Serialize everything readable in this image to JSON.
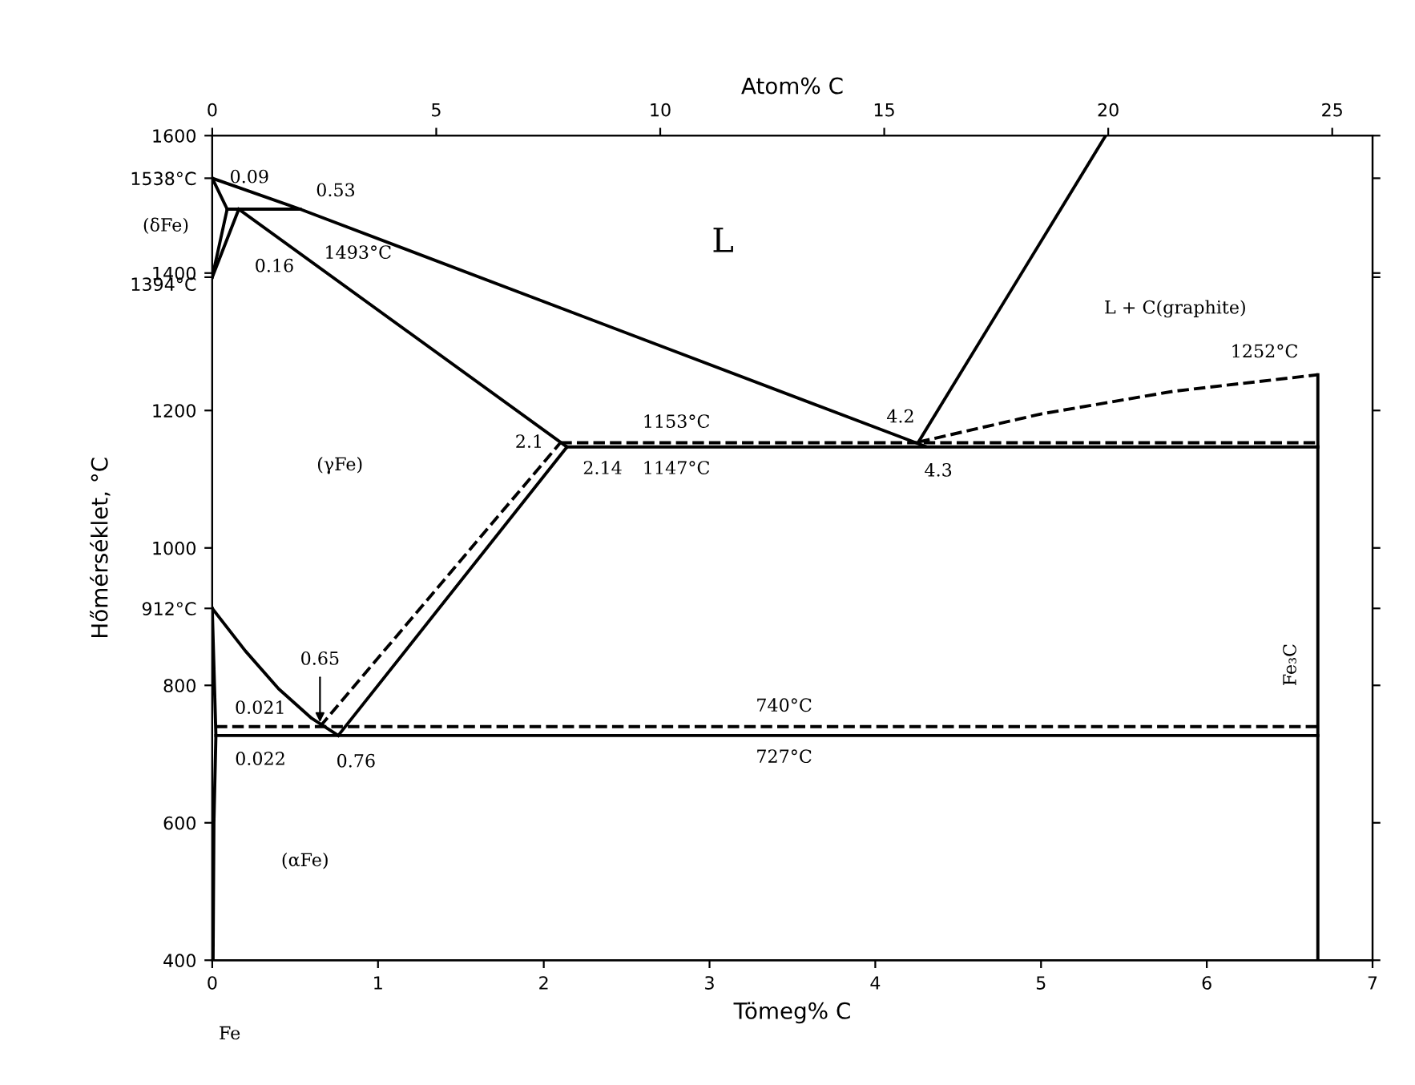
{
  "chart_data": {
    "type": "line",
    "xlabel": "Tömeg% C",
    "x2label": "Atom% C",
    "ylabel": "Hőmérséklet, °C",
    "xlim": [
      0,
      7
    ],
    "xticks": [
      0,
      1,
      2,
      3,
      4,
      5,
      6,
      7
    ],
    "x2lim": [
      0,
      25.9
    ],
    "x2ticks": [
      0,
      5,
      10,
      15,
      20,
      25
    ],
    "ylim": [
      400,
      1600
    ],
    "yticks": [
      400,
      600,
      800,
      {
        "value": 912,
        "label": "912°C"
      },
      1000,
      1200,
      {
        "value": 1394,
        "label": "1394°C"
      },
      1400,
      {
        "value": 1538,
        "label": "1538°C"
      },
      1600
    ],
    "grid": false,
    "legend": false,
    "marker": "none",
    "series": [
      {
        "color": "#000000",
        "line_style": "solid",
        "x": [
          0,
          0.53,
          4.3
        ],
        "values": [
          1538,
          1493,
          1148
        ]
      },
      {
        "color": "#000000",
        "line_style": "solid",
        "x": [
          4.26,
          5.39
        ],
        "values": [
          1154,
          1600
        ]
      },
      {
        "color": "#000000",
        "line_style": "solid",
        "x": [
          0,
          0.09
        ],
        "values": [
          1538,
          1493
        ]
      },
      {
        "color": "#000000",
        "line_style": "solid",
        "x": [
          0.09,
          0.53
        ],
        "values": [
          1493,
          1493
        ]
      },
      {
        "color": "#000000",
        "line_style": "solid",
        "x": [
          0,
          0.09
        ],
        "values": [
          1394,
          1493
        ]
      },
      {
        "color": "#000000",
        "line_style": "solid",
        "x": [
          0,
          0.16
        ],
        "values": [
          1394,
          1493
        ]
      },
      {
        "color": "#000000",
        "line_style": "solid",
        "x": [
          0.16,
          2.14
        ],
        "values": [
          1493,
          1147
        ]
      },
      {
        "color": "#000000",
        "line_style": "solid",
        "x": [
          2.14,
          6.67
        ],
        "values": [
          1147,
          1147
        ]
      },
      {
        "color": "#000000",
        "line_style": "dashed",
        "x": [
          2.1,
          6.67
        ],
        "values": [
          1153,
          1153
        ]
      },
      {
        "color": "#000000",
        "line_style": "solid",
        "x": [
          0.76,
          2.14
        ],
        "values": [
          727,
          1147
        ]
      },
      {
        "color": "#000000",
        "line_style": "dashed",
        "x": [
          0.65,
          2.1
        ],
        "values": [
          740,
          1153
        ]
      },
      {
        "color": "#000000",
        "line_style": "solid",
        "x": [
          0,
          0.2,
          0.4,
          0.6,
          0.76
        ],
        "values": [
          912,
          850,
          795,
          752,
          727
        ]
      },
      {
        "color": "#000000",
        "line_style": "solid",
        "x": [
          0.022,
          6.67
        ],
        "values": [
          727,
          727
        ]
      },
      {
        "color": "#000000",
        "line_style": "dashed",
        "x": [
          0.021,
          6.67
        ],
        "values": [
          740,
          740
        ]
      },
      {
        "color": "#000000",
        "line_style": "solid",
        "x": [
          0,
          0.022,
          0.01,
          0.005
        ],
        "values": [
          912,
          727,
          600,
          400
        ]
      },
      {
        "color": "#000000",
        "line_style": "solid",
        "x": [
          6.67,
          6.67
        ],
        "values": [
          400,
          1252
        ]
      },
      {
        "color": "#000000",
        "line_style": "dashed",
        "x": [
          4.26,
          5,
          5.8,
          6.67
        ],
        "values": [
          1154,
          1195,
          1228,
          1252
        ]
      }
    ],
    "annotations": [
      {
        "text": "0.09",
        "x": 0.09,
        "y": 1493
      },
      {
        "text": "0.53",
        "x": 0.53,
        "y": 1493
      },
      {
        "text": "1493°C",
        "x": 0.53,
        "y": 1493
      },
      "(δFe)",
      {
        "text": "0.16",
        "x": 0.16,
        "y": 1493
      },
      "L",
      "L + C(graphite)",
      {
        "text": "1252°C",
        "x": 6.67,
        "y": 1252
      },
      {
        "text": "4.2",
        "x": 4.26,
        "y": 1154
      },
      {
        "text": "4.3",
        "x": 4.3,
        "y": 1147
      },
      {
        "text": "2.1",
        "x": 2.1,
        "y": 1153
      },
      {
        "text": "2.14",
        "x": 2.14,
        "y": 1147
      },
      {
        "text": "1153°C",
        "x": 2.8,
        "y": 1153
      },
      {
        "text": "1147°C",
        "x": 2.8,
        "y": 1147
      },
      "(γFe)",
      {
        "text": "0.65",
        "x": 0.65,
        "y": 740
      },
      {
        "text": "0.021",
        "x": 0.021,
        "y": 740
      },
      {
        "text": "0.022",
        "x": 0.022,
        "y": 727
      },
      {
        "text": "0.76",
        "x": 0.76,
        "y": 727
      },
      {
        "text": "740°C",
        "x": 3.45,
        "y": 740
      },
      {
        "text": "727°C",
        "x": 3.45,
        "y": 727
      },
      "(αFe)",
      "Fe",
      {
        "text": "Fe₃C",
        "x": 6.67,
        "y": 830
      }
    ]
  }
}
